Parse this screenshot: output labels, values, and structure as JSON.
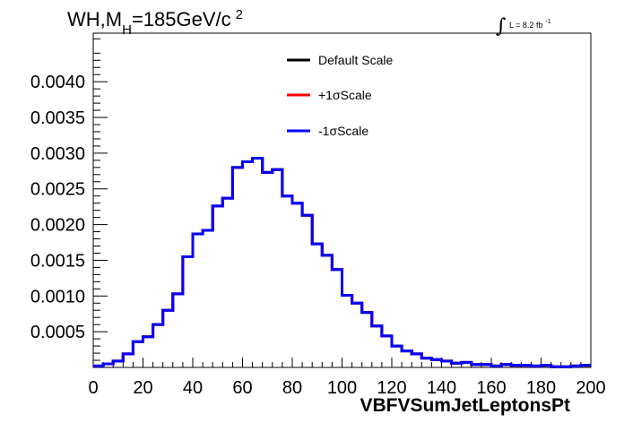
{
  "chart_data": {
    "type": "line",
    "title": {
      "prefix": "WH,M",
      "sub": "H",
      "mid": "=185GeV/c",
      "sup": "2"
    },
    "lumi": {
      "integral": "∫",
      "text": "L = 8.2 fb",
      "sup": "-1"
    },
    "xlabel": "VBFVSumJetLeptonsPt",
    "ylabel": "",
    "xlim": [
      0,
      200
    ],
    "ylim": [
      0,
      0.00468
    ],
    "x_ticks": [
      "0",
      "20",
      "40",
      "60",
      "80",
      "100",
      "120",
      "140",
      "160",
      "180",
      "200"
    ],
    "y_ticks": [
      "0.0005",
      "0.0010",
      "0.0015",
      "0.0020",
      "0.0025",
      "0.0030",
      "0.0035",
      "0.0040"
    ],
    "bin_width": 4,
    "bin_edges_start": 0,
    "legend": [
      {
        "name": "Default Scale",
        "color": "#000000"
      },
      {
        "name": "+1σScale",
        "color": "#ff0000"
      },
      {
        "name": "-1σScale",
        "color": "#0000ff"
      }
    ],
    "series": [
      {
        "name": "Default Scale",
        "color": "#000000",
        "values": [
          2e-05,
          5e-05,
          9e-05,
          0.00019,
          0.00036,
          0.00043,
          0.0006,
          0.0008,
          0.00103,
          0.00155,
          0.00187,
          0.00192,
          0.00226,
          0.00237,
          0.0028,
          0.00288,
          0.00293,
          0.00273,
          0.00277,
          0.0024,
          0.0023,
          0.00213,
          0.00173,
          0.00157,
          0.00137,
          0.00101,
          0.0009,
          0.00077,
          0.00058,
          0.00044,
          0.0003,
          0.00023,
          0.00019,
          0.00013,
          0.00011,
          9e-05,
          6e-05,
          7e-05,
          4e-05,
          4e-05,
          2e-05,
          4e-05,
          3e-05,
          3e-05,
          2e-05,
          3e-05,
          1e-05,
          1e-05,
          2e-05,
          3e-05
        ]
      },
      {
        "name": "+1σScale",
        "color": "#ff0000",
        "values": [
          2e-05,
          5e-05,
          9e-05,
          0.00019,
          0.00036,
          0.00043,
          0.0006,
          0.0008,
          0.00103,
          0.00155,
          0.00187,
          0.00192,
          0.00226,
          0.00237,
          0.0028,
          0.00288,
          0.00293,
          0.00273,
          0.00277,
          0.0024,
          0.0023,
          0.00213,
          0.00173,
          0.00157,
          0.00137,
          0.00101,
          0.0009,
          0.00077,
          0.00058,
          0.00044,
          0.0003,
          0.00023,
          0.00019,
          0.00013,
          0.00011,
          9e-05,
          6e-05,
          7e-05,
          4e-05,
          4e-05,
          2e-05,
          4e-05,
          3e-05,
          3e-05,
          2e-05,
          3e-05,
          1e-05,
          1e-05,
          2e-05,
          3e-05
        ]
      },
      {
        "name": "-1σScale",
        "color": "#0000ff",
        "values": [
          2e-05,
          5e-05,
          9e-05,
          0.00019,
          0.00036,
          0.00043,
          0.0006,
          0.0008,
          0.00103,
          0.00155,
          0.00187,
          0.00192,
          0.00226,
          0.00237,
          0.0028,
          0.00288,
          0.00293,
          0.00273,
          0.00277,
          0.0024,
          0.0023,
          0.00213,
          0.00173,
          0.00157,
          0.00137,
          0.00101,
          0.0009,
          0.00077,
          0.00058,
          0.00044,
          0.0003,
          0.00023,
          0.00019,
          0.00013,
          0.00011,
          9e-05,
          6e-05,
          7e-05,
          4e-05,
          4e-05,
          2e-05,
          4e-05,
          3e-05,
          3e-05,
          2e-05,
          3e-05,
          1e-05,
          1e-05,
          2e-05,
          3e-05
        ]
      }
    ],
    "grid": false,
    "legend_position": "top-center"
  }
}
